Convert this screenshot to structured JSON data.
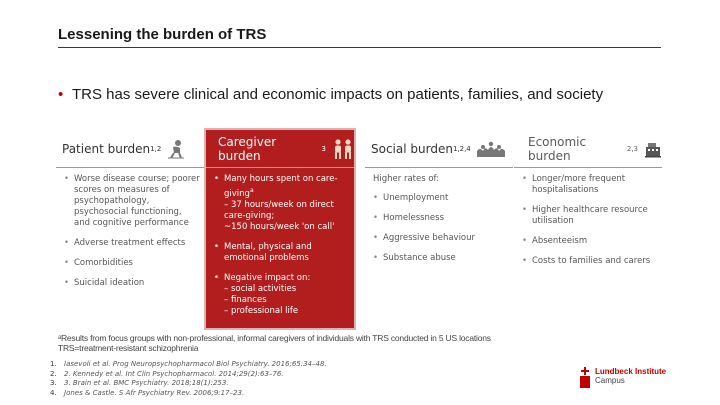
{
  "title": "Lessening the burden of TRS",
  "lead": {
    "bullet": "•",
    "text": "TRS has severe clinical and economic impacts on patients, families, and society"
  },
  "columns": {
    "patient": {
      "title": "Patient burden",
      "sup": "1,2",
      "items": [
        "Worse disease course; poorer scores on measures of psychopathology, psychosocial functioning, and cognitive performance",
        "Adverse treatment effects",
        "Comorbidities",
        "Suicidal ideation"
      ]
    },
    "caregiver": {
      "title": "Caregiver burden",
      "sup": "3",
      "items": [
        {
          "main": "Many hours spent on care-giving",
          "sup": "a",
          "subs": [
            "– 37 hours/week on direct care-giving;",
            "~150 hours/week 'on call'"
          ]
        },
        {
          "main": "Mental, physical and emotional problems",
          "sup": "",
          "subs": []
        },
        {
          "main": "Negative impact on:",
          "sup": "",
          "subs": [
            "– social activities",
            "– finances",
            "– professional life"
          ]
        }
      ]
    },
    "social": {
      "title": "Social burden",
      "sup": "1,2,4",
      "intro": "Higher rates of:",
      "items": [
        "Unemployment",
        "Homelessness",
        "Aggressive behaviour",
        "Substance abuse"
      ]
    },
    "economic": {
      "title": "Economic burden",
      "sup": "2,3",
      "items": [
        "Longer/more frequent hospitalisations",
        "Higher healthcare resource utilisation",
        "Absenteeism",
        "Costs to families and carers"
      ]
    }
  },
  "footnote": {
    "line1": "ᵃResults from focus groups with non-professional, informal caregivers of individuals with TRS conducted in 5 US locations",
    "line2": "TRS=treatment-resistant schizophrenia"
  },
  "references": [
    {
      "num": "1.",
      "text": "Iasevoli et al. Prog Neuropsychopharmacol Biol Psychiatry. 2016;65:34–48."
    },
    {
      "num": "2.",
      "text": "2. Kennedy et al. Int Clin Psychopharmacol. 2014;29(2):63–76."
    },
    {
      "num": "3.",
      "text": "3. Brain et al. BMC Psychiatry. 2018;18(1):253."
    },
    {
      "num": "4.",
      "text": "Jones & Castle. S Afr Psychiatry Rev. 2006;9:17–23."
    }
  ],
  "logo": {
    "line1": "Lundbeck Institute",
    "line2": "Campus"
  },
  "colors": {
    "accent": "#c00000",
    "caregiver_panel": "#b21e1e"
  }
}
